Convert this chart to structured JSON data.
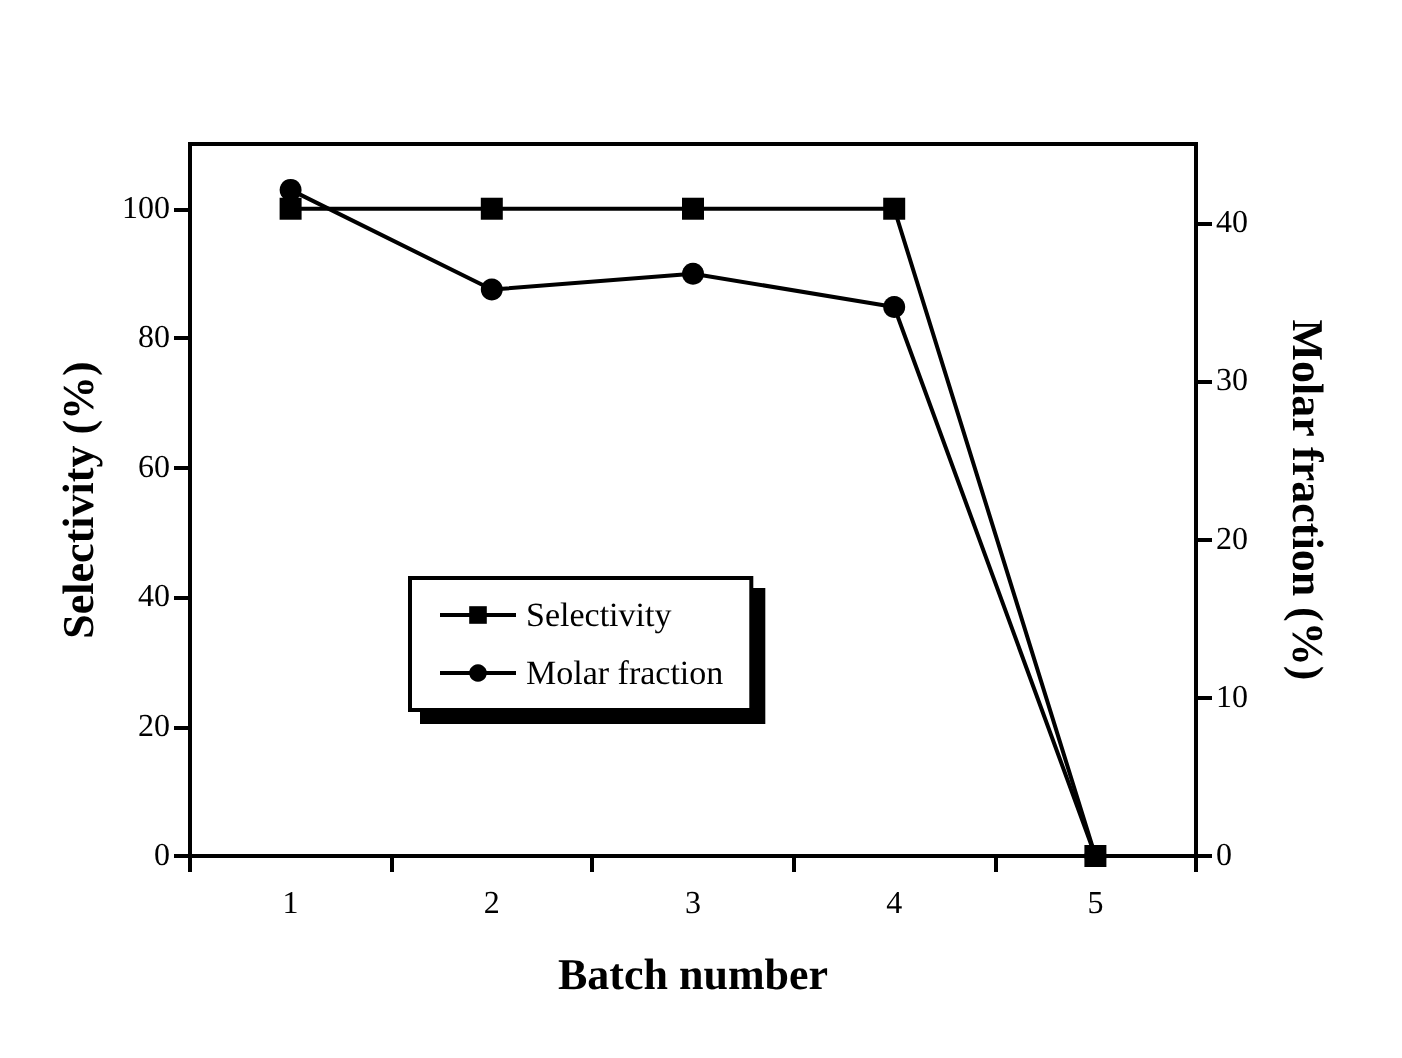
{
  "chart_data": {
    "type": "line",
    "xlabel": "Batch number",
    "ylabel": "Selectivity (%)",
    "y2label": "Molar fraction (%)",
    "categories": [
      "1",
      "2",
      "3",
      "4",
      "5"
    ],
    "series": [
      {
        "name": "Selectivity",
        "color": "#000000",
        "marker": "square",
        "values": [
          100,
          100,
          100,
          100,
          0
        ]
      },
      {
        "name": "Molar fraction",
        "color": "#000000",
        "marker": "circle",
        "axis": "y2",
        "values": [
          42.1,
          35.8,
          36.8,
          34.7,
          0
        ]
      }
    ],
    "ylim": [
      0,
      110
    ],
    "yticks": [
      0,
      20,
      40,
      60,
      80,
      100
    ],
    "y2lim": [
      0,
      45
    ],
    "y2ticks": [
      0,
      10,
      20,
      30,
      40
    ],
    "grid": false,
    "legend": "bottom left",
    "line_style": "solid"
  }
}
